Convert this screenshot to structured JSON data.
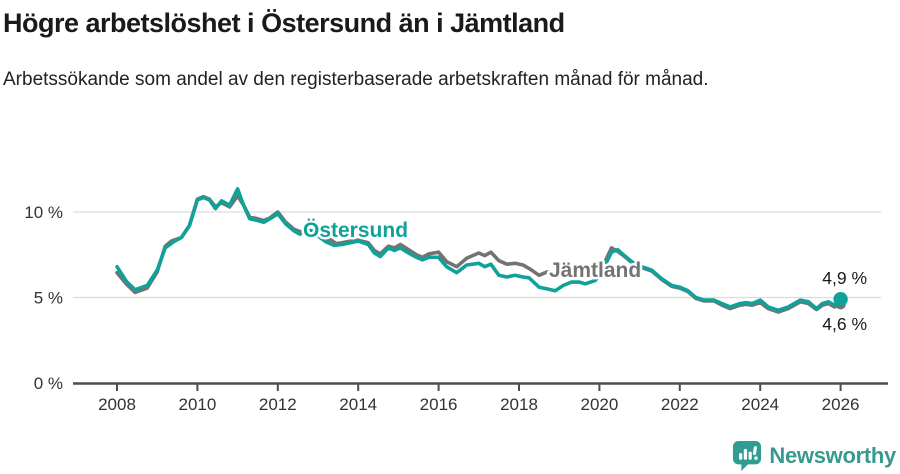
{
  "header": {
    "title": "Högre arbetslöshet i Östersund än i Jämtland",
    "subtitle": "Arbetssökande som andel av den registerbaserade arbetskraften månad för månad."
  },
  "chart_data": {
    "type": "line",
    "title": "Högre arbetslöshet i Östersund än i Jämtland",
    "subtitle": "Arbetssökande som andel av den registerbaserade arbetskraften månad för månad.",
    "unit": "%",
    "xlabel": "",
    "ylabel": "",
    "xlim": [
      2007.6,
      2026.8
    ],
    "ylim": [
      0,
      12
    ],
    "grid": "horizontal",
    "x_ticks": [
      2008,
      2010,
      2012,
      2014,
      2016,
      2018,
      2020,
      2022,
      2024,
      2026
    ],
    "y_ticks": [
      {
        "value": 10,
        "label": "10 %"
      },
      {
        "value": 5,
        "label": "5 %"
      },
      {
        "value": 0,
        "label": "0 %"
      }
    ],
    "colors": {
      "ostersund": "#10a299",
      "jamtland": "#737373",
      "gridline": "#dcdcdc",
      "axis": "#4d4d4d",
      "tick_label": "#333333",
      "annotation": "#1a1a1a"
    },
    "series": [
      {
        "name": "Jämtland",
        "color": "#737373",
        "end_label": "4,6 %",
        "end_value": 4.6,
        "points": [
          [
            2008.0,
            6.45
          ],
          [
            2008.25,
            5.75
          ],
          [
            2008.45,
            5.3
          ],
          [
            2008.75,
            5.55
          ],
          [
            2009.0,
            6.5
          ],
          [
            2009.2,
            8.0
          ],
          [
            2009.35,
            8.3
          ],
          [
            2009.6,
            8.5
          ],
          [
            2009.8,
            9.2
          ],
          [
            2010.0,
            10.75
          ],
          [
            2010.15,
            10.9
          ],
          [
            2010.3,
            10.75
          ],
          [
            2010.45,
            10.3
          ],
          [
            2010.6,
            10.55
          ],
          [
            2010.8,
            10.3
          ],
          [
            2011.0,
            10.95
          ],
          [
            2011.15,
            10.4
          ],
          [
            2011.3,
            9.7
          ],
          [
            2011.5,
            9.6
          ],
          [
            2011.65,
            9.5
          ],
          [
            2011.8,
            9.65
          ],
          [
            2012.0,
            10.0
          ],
          [
            2012.2,
            9.4
          ],
          [
            2012.4,
            9.0
          ],
          [
            2012.55,
            8.85
          ],
          [
            2012.7,
            8.9
          ],
          [
            2012.85,
            8.85
          ],
          [
            2013.0,
            8.6
          ],
          [
            2013.2,
            8.3
          ],
          [
            2013.3,
            8.4
          ],
          [
            2013.45,
            8.15
          ],
          [
            2013.6,
            8.2
          ],
          [
            2013.8,
            8.3
          ],
          [
            2014.0,
            8.35
          ],
          [
            2014.25,
            8.2
          ],
          [
            2014.4,
            7.75
          ],
          [
            2014.55,
            7.55
          ],
          [
            2014.75,
            8.0
          ],
          [
            2014.9,
            7.9
          ],
          [
            2015.05,
            8.1
          ],
          [
            2015.25,
            7.8
          ],
          [
            2015.45,
            7.5
          ],
          [
            2015.6,
            7.35
          ],
          [
            2015.75,
            7.55
          ],
          [
            2016.0,
            7.65
          ],
          [
            2016.2,
            7.1
          ],
          [
            2016.45,
            6.8
          ],
          [
            2016.7,
            7.3
          ],
          [
            2017.0,
            7.6
          ],
          [
            2017.15,
            7.45
          ],
          [
            2017.3,
            7.65
          ],
          [
            2017.5,
            7.15
          ],
          [
            2017.7,
            6.95
          ],
          [
            2017.9,
            7.0
          ],
          [
            2018.1,
            6.9
          ],
          [
            2018.25,
            6.7
          ],
          [
            2018.5,
            6.3
          ],
          [
            2018.7,
            6.5
          ],
          [
            2018.9,
            6.45
          ],
          [
            2019.1,
            6.4
          ],
          [
            2019.3,
            6.35
          ],
          [
            2019.5,
            6.3
          ],
          [
            2019.65,
            6.25
          ],
          [
            2019.9,
            6.3
          ],
          [
            2020.1,
            6.9
          ],
          [
            2020.3,
            7.9
          ],
          [
            2020.45,
            7.7
          ],
          [
            2020.6,
            7.45
          ],
          [
            2020.8,
            7.05
          ],
          [
            2021.05,
            6.75
          ],
          [
            2021.3,
            6.55
          ],
          [
            2021.55,
            6.05
          ],
          [
            2021.8,
            5.65
          ],
          [
            2022.0,
            5.55
          ],
          [
            2022.2,
            5.35
          ],
          [
            2022.4,
            4.95
          ],
          [
            2022.6,
            4.8
          ],
          [
            2022.85,
            4.8
          ],
          [
            2023.05,
            4.55
          ],
          [
            2023.25,
            4.35
          ],
          [
            2023.5,
            4.55
          ],
          [
            2023.65,
            4.6
          ],
          [
            2023.8,
            4.55
          ],
          [
            2024.0,
            4.7
          ],
          [
            2024.2,
            4.35
          ],
          [
            2024.45,
            4.15
          ],
          [
            2024.7,
            4.35
          ],
          [
            2024.85,
            4.55
          ],
          [
            2025.0,
            4.75
          ],
          [
            2025.2,
            4.65
          ],
          [
            2025.4,
            4.3
          ],
          [
            2025.55,
            4.55
          ],
          [
            2025.7,
            4.65
          ],
          [
            2025.85,
            4.45
          ],
          [
            2026.0,
            4.6
          ]
        ]
      },
      {
        "name": "Östersund",
        "color": "#10a299",
        "end_label": "4,9 %",
        "end_value": 4.9,
        "points": [
          [
            2008.0,
            6.8
          ],
          [
            2008.25,
            5.9
          ],
          [
            2008.45,
            5.45
          ],
          [
            2008.75,
            5.7
          ],
          [
            2009.0,
            6.6
          ],
          [
            2009.2,
            7.9
          ],
          [
            2009.4,
            8.25
          ],
          [
            2009.6,
            8.5
          ],
          [
            2009.8,
            9.2
          ],
          [
            2010.0,
            10.7
          ],
          [
            2010.15,
            10.85
          ],
          [
            2010.3,
            10.7
          ],
          [
            2010.45,
            10.2
          ],
          [
            2010.6,
            10.65
          ],
          [
            2010.8,
            10.4
          ],
          [
            2011.0,
            11.35
          ],
          [
            2011.15,
            10.4
          ],
          [
            2011.3,
            9.6
          ],
          [
            2011.5,
            9.5
          ],
          [
            2011.65,
            9.4
          ],
          [
            2011.8,
            9.6
          ],
          [
            2012.0,
            9.9
          ],
          [
            2012.2,
            9.3
          ],
          [
            2012.4,
            8.9
          ],
          [
            2012.55,
            8.7
          ],
          [
            2012.7,
            8.95
          ],
          [
            2012.85,
            8.9
          ],
          [
            2013.0,
            8.6
          ],
          [
            2013.2,
            8.25
          ],
          [
            2013.4,
            8.05
          ],
          [
            2013.6,
            8.1
          ],
          [
            2013.8,
            8.2
          ],
          [
            2014.0,
            8.3
          ],
          [
            2014.25,
            8.1
          ],
          [
            2014.4,
            7.6
          ],
          [
            2014.55,
            7.4
          ],
          [
            2014.75,
            7.9
          ],
          [
            2014.9,
            7.75
          ],
          [
            2015.05,
            7.9
          ],
          [
            2015.25,
            7.6
          ],
          [
            2015.45,
            7.35
          ],
          [
            2015.6,
            7.2
          ],
          [
            2015.75,
            7.35
          ],
          [
            2016.0,
            7.35
          ],
          [
            2016.2,
            6.8
          ],
          [
            2016.45,
            6.45
          ],
          [
            2016.7,
            6.9
          ],
          [
            2017.0,
            7.0
          ],
          [
            2017.15,
            6.8
          ],
          [
            2017.3,
            6.95
          ],
          [
            2017.5,
            6.3
          ],
          [
            2017.7,
            6.2
          ],
          [
            2017.9,
            6.3
          ],
          [
            2018.1,
            6.2
          ],
          [
            2018.25,
            6.15
          ],
          [
            2018.5,
            5.6
          ],
          [
            2018.7,
            5.5
          ],
          [
            2018.9,
            5.4
          ],
          [
            2019.1,
            5.7
          ],
          [
            2019.3,
            5.9
          ],
          [
            2019.5,
            5.9
          ],
          [
            2019.65,
            5.8
          ],
          [
            2019.9,
            6.0
          ],
          [
            2020.1,
            6.7
          ],
          [
            2020.3,
            7.65
          ],
          [
            2020.45,
            7.8
          ],
          [
            2020.6,
            7.5
          ],
          [
            2020.8,
            7.1
          ],
          [
            2021.05,
            6.8
          ],
          [
            2021.3,
            6.6
          ],
          [
            2021.55,
            6.1
          ],
          [
            2021.8,
            5.7
          ],
          [
            2022.0,
            5.6
          ],
          [
            2022.2,
            5.4
          ],
          [
            2022.4,
            5.0
          ],
          [
            2022.6,
            4.85
          ],
          [
            2022.85,
            4.85
          ],
          [
            2023.05,
            4.65
          ],
          [
            2023.25,
            4.45
          ],
          [
            2023.5,
            4.65
          ],
          [
            2023.65,
            4.7
          ],
          [
            2023.8,
            4.65
          ],
          [
            2024.0,
            4.85
          ],
          [
            2024.2,
            4.45
          ],
          [
            2024.45,
            4.25
          ],
          [
            2024.7,
            4.45
          ],
          [
            2024.85,
            4.65
          ],
          [
            2025.0,
            4.85
          ],
          [
            2025.2,
            4.75
          ],
          [
            2025.4,
            4.35
          ],
          [
            2025.55,
            4.65
          ],
          [
            2025.7,
            4.75
          ],
          [
            2025.85,
            4.55
          ],
          [
            2026.0,
            4.9
          ]
        ]
      }
    ]
  },
  "footer": {
    "brand": "Newsworthy",
    "logo_icon": "bar-chart-speech-bubble"
  }
}
